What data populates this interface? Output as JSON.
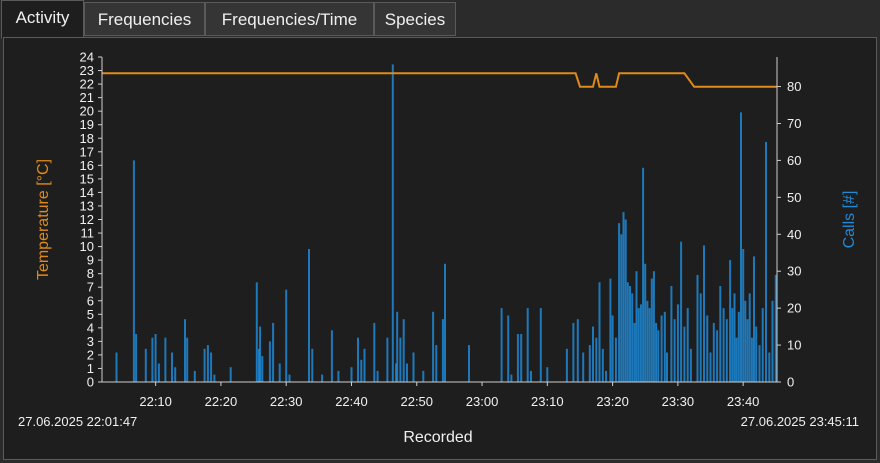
{
  "tabs": [
    {
      "label": "Activity",
      "active": true
    },
    {
      "label": "Frequencies",
      "active": false
    },
    {
      "label": "Frequencies/Time",
      "active": false
    },
    {
      "label": "Species",
      "active": false
    }
  ],
  "colors": {
    "temperature": "#e08a1a",
    "calls": "#1f8ad6",
    "tick": "#f0f0f0",
    "axis": "#cfcfcf"
  },
  "chart_data": {
    "type": "bar+line",
    "xlabel": "Recorded",
    "x_start_label": "27.06.2025 22:01:47",
    "x_end_label": "27.06.2025 23:45:11",
    "x_tick_labels": [
      "22:10",
      "22:20",
      "22:30",
      "22:40",
      "22:50",
      "23:00",
      "23:10",
      "23:20",
      "23:30",
      "23:40"
    ],
    "xlim": [
      "22:01:47",
      "23:45:11"
    ],
    "y_left": {
      "label": "Temperature [°C]",
      "lim": [
        0,
        24
      ],
      "ticks": [
        0,
        1,
        2,
        3,
        4,
        5,
        6,
        7,
        8,
        9,
        10,
        11,
        12,
        13,
        14,
        15,
        16,
        17,
        18,
        19,
        20,
        21,
        22,
        23,
        24
      ]
    },
    "y_right": {
      "label": "Calls [#]",
      "lim": [
        0,
        88
      ],
      "ticks": [
        0,
        10,
        20,
        30,
        40,
        50,
        60,
        70,
        80
      ]
    },
    "temperature_series": {
      "axis": "left",
      "points": [
        [
          "22:01:47",
          22.8
        ],
        [
          "23:14:20",
          22.8
        ],
        [
          "23:15:00",
          21.8
        ],
        [
          "23:17:00",
          21.8
        ],
        [
          "23:17:30",
          22.8
        ],
        [
          "23:18:00",
          21.8
        ],
        [
          "23:20:30",
          21.8
        ],
        [
          "23:21:00",
          22.8
        ],
        [
          "23:31:00",
          22.8
        ],
        [
          "23:32:30",
          21.8
        ],
        [
          "23:45:11",
          21.8
        ]
      ]
    },
    "calls_series": {
      "axis": "right",
      "bars": [
        [
          "22:04:00",
          8
        ],
        [
          "22:06:40",
          60
        ],
        [
          "22:07:00",
          13
        ],
        [
          "22:08:30",
          9
        ],
        [
          "22:09:30",
          12
        ],
        [
          "22:10:00",
          13
        ],
        [
          "22:10:30",
          5
        ],
        [
          "22:11:30",
          12
        ],
        [
          "22:12:30",
          8
        ],
        [
          "22:13:00",
          4
        ],
        [
          "22:14:30",
          17
        ],
        [
          "22:14:50",
          12
        ],
        [
          "22:16:00",
          3
        ],
        [
          "22:17:30",
          9
        ],
        [
          "22:18:00",
          10
        ],
        [
          "22:18:30",
          8
        ],
        [
          "22:19:00",
          2
        ],
        [
          "22:21:30",
          4
        ],
        [
          "22:25:30",
          27
        ],
        [
          "22:25:50",
          9
        ],
        [
          "22:26:00",
          15
        ],
        [
          "22:26:20",
          7
        ],
        [
          "22:27:30",
          11
        ],
        [
          "22:28:00",
          16
        ],
        [
          "22:29:00",
          5
        ],
        [
          "22:30:00",
          25
        ],
        [
          "22:30:30",
          2
        ],
        [
          "22:33:30",
          36
        ],
        [
          "22:34:00",
          9
        ],
        [
          "22:35:30",
          2
        ],
        [
          "22:37:00",
          14
        ],
        [
          "22:38:00",
          3
        ],
        [
          "22:40:00",
          4
        ],
        [
          "22:41:00",
          12
        ],
        [
          "22:41:30",
          6
        ],
        [
          "22:42:00",
          9
        ],
        [
          "22:43:30",
          16
        ],
        [
          "22:44:00",
          3
        ],
        [
          "22:45:30",
          12
        ],
        [
          "22:46:20",
          86
        ],
        [
          "22:46:50",
          5
        ],
        [
          "22:47:00",
          19
        ],
        [
          "22:47:30",
          12
        ],
        [
          "22:48:00",
          17
        ],
        [
          "22:48:30",
          5
        ],
        [
          "22:49:30",
          8
        ],
        [
          "22:51:00",
          3
        ],
        [
          "22:52:30",
          19
        ],
        [
          "22:53:00",
          10
        ],
        [
          "22:54:00",
          17
        ],
        [
          "22:54:20",
          32
        ],
        [
          "22:58:00",
          10
        ],
        [
          "23:03:00",
          20
        ],
        [
          "23:04:00",
          18
        ],
        [
          "23:04:30",
          2
        ],
        [
          "23:05:30",
          13
        ],
        [
          "23:06:00",
          13
        ],
        [
          "23:07:00",
          20
        ],
        [
          "23:07:30",
          3
        ],
        [
          "23:09:00",
          20
        ],
        [
          "23:10:00",
          4
        ],
        [
          "23:13:00",
          9
        ],
        [
          "23:14:00",
          16
        ],
        [
          "23:14:40",
          17
        ],
        [
          "23:15:30",
          8
        ],
        [
          "23:16:30",
          10
        ],
        [
          "23:17:00",
          15
        ],
        [
          "23:17:30",
          12
        ],
        [
          "23:18:00",
          27
        ],
        [
          "23:18:30",
          9
        ],
        [
          "23:19:00",
          3
        ],
        [
          "23:19:40",
          28
        ],
        [
          "23:20:00",
          18
        ],
        [
          "23:20:30",
          12
        ],
        [
          "23:21:00",
          43
        ],
        [
          "23:21:20",
          40
        ],
        [
          "23:21:40",
          46
        ],
        [
          "23:22:00",
          44
        ],
        [
          "23:22:20",
          27
        ],
        [
          "23:22:40",
          26
        ],
        [
          "23:23:00",
          24
        ],
        [
          "23:23:20",
          16
        ],
        [
          "23:23:40",
          30
        ],
        [
          "23:24:00",
          20
        ],
        [
          "23:24:20",
          21
        ],
        [
          "23:24:40",
          58
        ],
        [
          "23:25:00",
          32
        ],
        [
          "23:25:20",
          22
        ],
        [
          "23:25:40",
          20
        ],
        [
          "23:26:00",
          28
        ],
        [
          "23:26:20",
          30
        ],
        [
          "23:26:40",
          16
        ],
        [
          "23:27:00",
          14
        ],
        [
          "23:27:30",
          18
        ],
        [
          "23:28:00",
          19
        ],
        [
          "23:28:20",
          8
        ],
        [
          "23:29:00",
          26
        ],
        [
          "23:29:30",
          17
        ],
        [
          "23:30:00",
          21
        ],
        [
          "23:30:30",
          38
        ],
        [
          "23:31:00",
          15
        ],
        [
          "23:31:30",
          20
        ],
        [
          "23:32:00",
          9
        ],
        [
          "23:33:00",
          29
        ],
        [
          "23:33:30",
          24
        ],
        [
          "23:34:00",
          37
        ],
        [
          "23:34:30",
          18
        ],
        [
          "23:35:00",
          8
        ],
        [
          "23:35:30",
          16
        ],
        [
          "23:36:00",
          14
        ],
        [
          "23:36:30",
          26
        ],
        [
          "23:37:00",
          20
        ],
        [
          "23:37:30",
          17
        ],
        [
          "23:38:00",
          33
        ],
        [
          "23:38:20",
          20
        ],
        [
          "23:38:40",
          24
        ],
        [
          "23:39:00",
          12
        ],
        [
          "23:39:20",
          19
        ],
        [
          "23:39:40",
          73
        ],
        [
          "23:40:00",
          36
        ],
        [
          "23:40:20",
          22
        ],
        [
          "23:40:40",
          17
        ],
        [
          "23:41:00",
          24
        ],
        [
          "23:41:20",
          12
        ],
        [
          "23:41:40",
          34
        ],
        [
          "23:42:00",
          15
        ],
        [
          "23:42:30",
          10
        ],
        [
          "23:43:00",
          20
        ],
        [
          "23:43:30",
          65
        ],
        [
          "23:44:00",
          8
        ],
        [
          "23:44:30",
          22
        ],
        [
          "23:45:00",
          29
        ]
      ]
    }
  }
}
